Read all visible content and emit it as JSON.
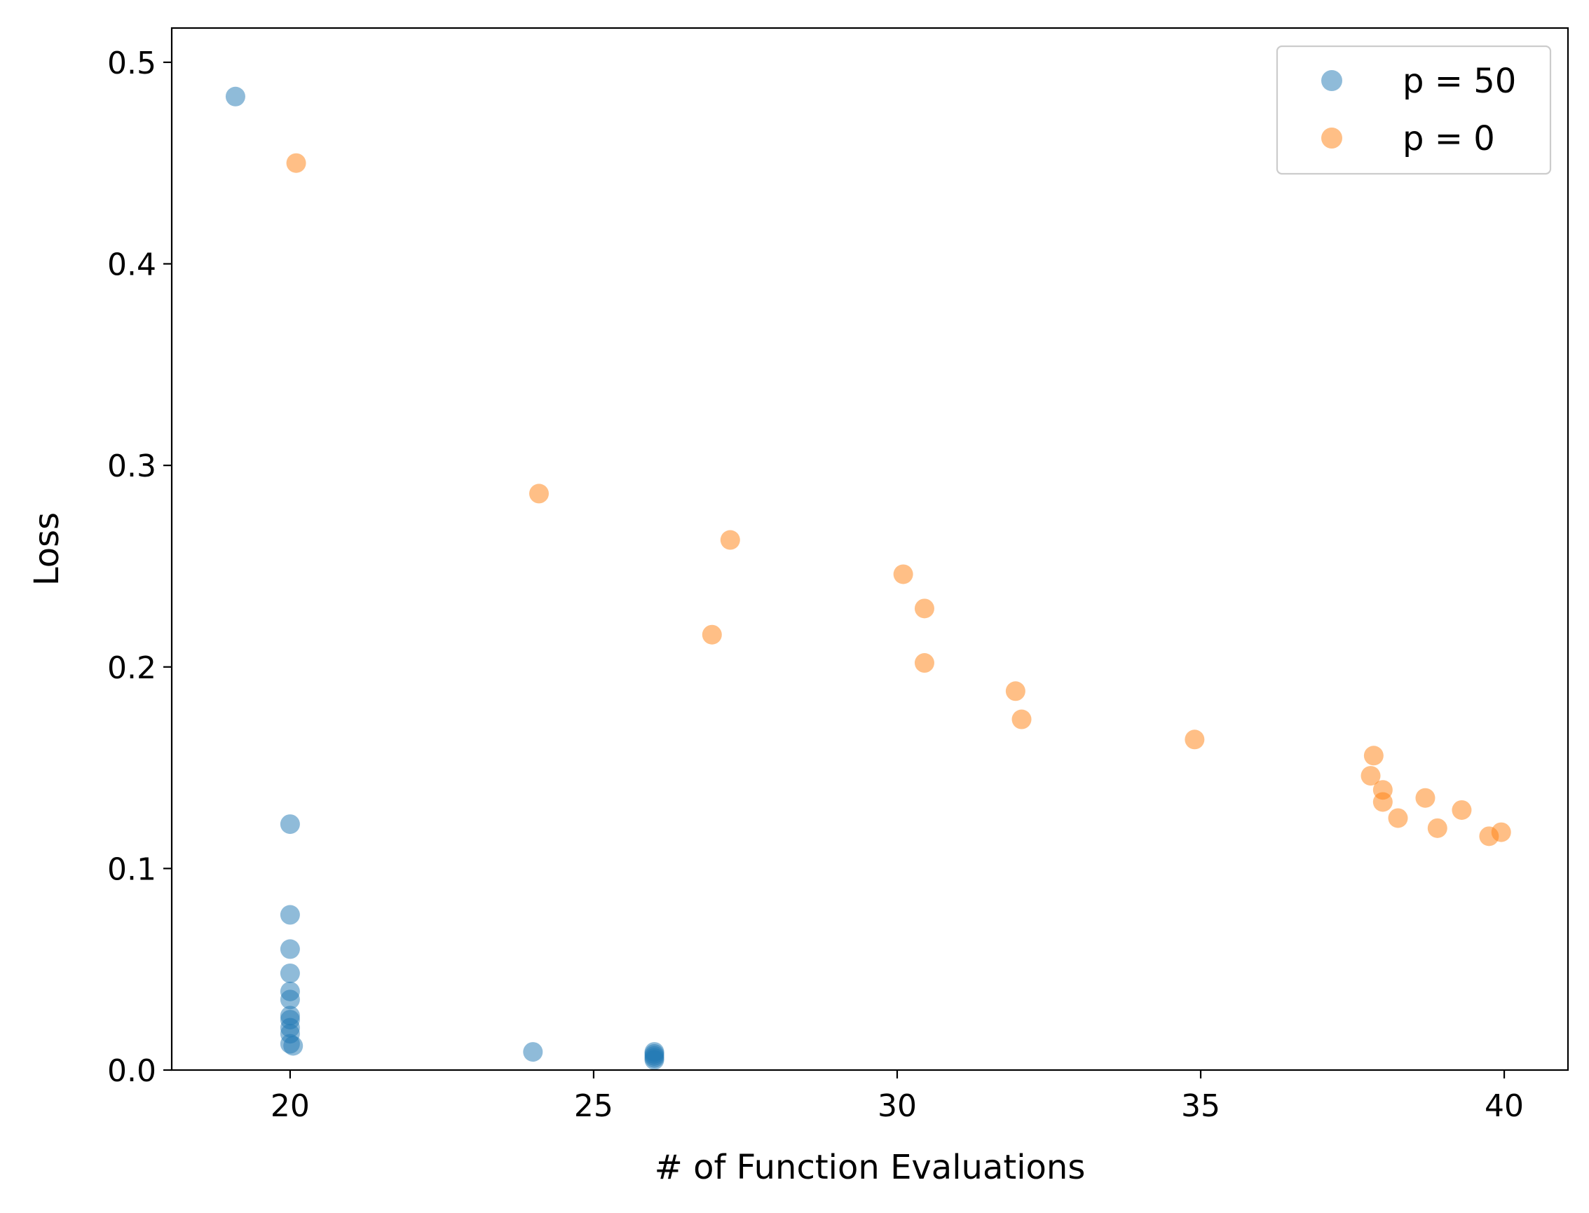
{
  "chart_data": {
    "type": "scatter",
    "title": "",
    "xlabel": "# of Function Evaluations",
    "ylabel": "Loss",
    "xlim": [
      18.05,
      41.05
    ],
    "ylim": [
      0.0,
      0.517
    ],
    "x_ticks": [
      20,
      25,
      30,
      35,
      40
    ],
    "x_tick_labels": [
      "20",
      "25",
      "30",
      "35",
      "40"
    ],
    "y_ticks": [
      0.0,
      0.1,
      0.2,
      0.3,
      0.4,
      0.5
    ],
    "y_tick_labels": [
      "0.0",
      "0.1",
      "0.2",
      "0.3",
      "0.4",
      "0.5"
    ],
    "grid": false,
    "legend_position": "top-right",
    "series": [
      {
        "name": "p = 50",
        "color": "#1f77b4",
        "opacity": 0.5,
        "points": [
          [
            19.1,
            0.483
          ],
          [
            20.0,
            0.122
          ],
          [
            20.0,
            0.077
          ],
          [
            20.0,
            0.06
          ],
          [
            20.0,
            0.048
          ],
          [
            20.0,
            0.039
          ],
          [
            20.0,
            0.035
          ],
          [
            20.0,
            0.027
          ],
          [
            20.0,
            0.025
          ],
          [
            20.0,
            0.021
          ],
          [
            20.0,
            0.018
          ],
          [
            20.0,
            0.013
          ],
          [
            20.05,
            0.012
          ],
          [
            24.0,
            0.009
          ],
          [
            26.0,
            0.009
          ],
          [
            26.0,
            0.008
          ],
          [
            26.0,
            0.007
          ],
          [
            26.0,
            0.006
          ],
          [
            26.0,
            0.005
          ]
        ]
      },
      {
        "name": "p = 0",
        "color": "#ff7f0e",
        "opacity": 0.5,
        "points": [
          [
            20.1,
            0.45
          ],
          [
            24.1,
            0.286
          ],
          [
            27.25,
            0.263
          ],
          [
            26.95,
            0.216
          ],
          [
            30.1,
            0.246
          ],
          [
            30.45,
            0.229
          ],
          [
            30.45,
            0.202
          ],
          [
            31.95,
            0.188
          ],
          [
            32.05,
            0.174
          ],
          [
            34.9,
            0.164
          ],
          [
            37.85,
            0.156
          ],
          [
            37.8,
            0.146
          ],
          [
            38.0,
            0.139
          ],
          [
            38.0,
            0.133
          ],
          [
            38.25,
            0.125
          ],
          [
            38.7,
            0.135
          ],
          [
            38.9,
            0.12
          ],
          [
            39.3,
            0.129
          ],
          [
            39.75,
            0.116
          ],
          [
            39.95,
            0.118
          ]
        ]
      }
    ]
  }
}
